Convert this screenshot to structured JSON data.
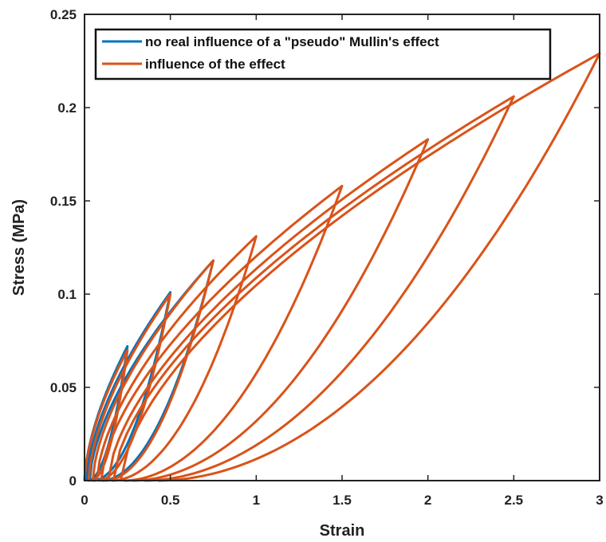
{
  "chart_data": {
    "type": "line",
    "xlabel": "Strain",
    "ylabel": "Stress (MPa)",
    "xlim": [
      0,
      3
    ],
    "ylim": [
      0,
      0.25
    ],
    "x_ticks": [
      0,
      0.5,
      1,
      1.5,
      2,
      2.5,
      3
    ],
    "x_tick_labels": [
      "0",
      "0.5",
      "1",
      "1.5",
      "2",
      "2.5",
      "3"
    ],
    "y_ticks": [
      0,
      0.05,
      0.1,
      0.15,
      0.2,
      0.25
    ],
    "y_tick_labels": [
      "0",
      "0.05",
      "0.1",
      "0.15",
      "0.2",
      "0.25"
    ],
    "grid": false,
    "legend_position": "top-left",
    "series": [
      {
        "name": "no real influence of a \"pseudo\" Mullin's effect",
        "color": "#0072BD",
        "cycles": [
          {
            "max_strain": 0.25,
            "peak_stress": 0.072,
            "residual_strain": 0.02
          },
          {
            "max_strain": 0.5,
            "peak_stress": 0.101,
            "residual_strain": 0.05
          },
          {
            "max_strain": 0.75,
            "peak_stress": 0.118,
            "residual_strain": 0.1
          }
        ]
      },
      {
        "name": "influence of the effect",
        "color": "#D95319",
        "cycles": [
          {
            "max_strain": 0.25,
            "peak_stress": 0.07,
            "residual_strain": 0.04
          },
          {
            "max_strain": 0.5,
            "peak_stress": 0.1,
            "residual_strain": 0.08
          },
          {
            "max_strain": 0.75,
            "peak_stress": 0.118,
            "residual_strain": 0.12
          },
          {
            "max_strain": 1.0,
            "peak_stress": 0.131,
            "residual_strain": 0.16
          },
          {
            "max_strain": 1.5,
            "peak_stress": 0.158,
            "residual_strain": 0.23
          },
          {
            "max_strain": 2.0,
            "peak_stress": 0.183,
            "residual_strain": 0.28
          },
          {
            "max_strain": 2.5,
            "peak_stress": 0.206,
            "residual_strain": 0.35
          },
          {
            "max_strain": 3.0,
            "peak_stress": 0.229,
            "residual_strain": 0.43
          }
        ]
      }
    ]
  }
}
